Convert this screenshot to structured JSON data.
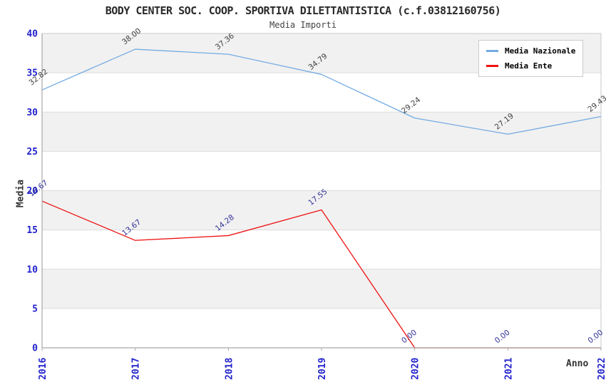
{
  "chart_data": {
    "type": "line",
    "title": "BODY CENTER SOC. COOP. SPORTIVA DILETTANTISTICA (c.f.03812160756)",
    "subtitle": "Media Importi",
    "xlabel": "Anno",
    "ylabel": "Media",
    "x": [
      "2016",
      "2017",
      "2018",
      "2019",
      "2020",
      "2021",
      "2022"
    ],
    "series": [
      {
        "name": "Media Nazionale",
        "color": "#74abe2",
        "label_color": "#404040",
        "values": [
          32.82,
          38.0,
          37.36,
          34.79,
          29.24,
          27.19,
          29.43
        ]
      },
      {
        "name": "Media Ente",
        "color": "#ee1111",
        "label_color": "#333399",
        "values": [
          18.67,
          13.67,
          14.28,
          17.55,
          0.0,
          0.0,
          0.0
        ]
      }
    ],
    "ylim": [
      0,
      40
    ],
    "yticks": [
      0,
      5,
      10,
      15,
      20,
      25,
      30,
      35,
      40
    ],
    "grid": true,
    "legend_position": "top-right",
    "colors": {
      "band_fill": "#f1f1f1",
      "band_alt_fill": "#ffffff",
      "grid_line": "#dcdcdc",
      "plot_border": "#c9c9c9",
      "axis_line": "#a8a8a8",
      "tick_labels": "#2222cc",
      "title_text": "#2a2a2a",
      "axis_title_text": "#333333"
    },
    "value_label_decimals": 2,
    "value_label_rotation_deg": -38
  }
}
